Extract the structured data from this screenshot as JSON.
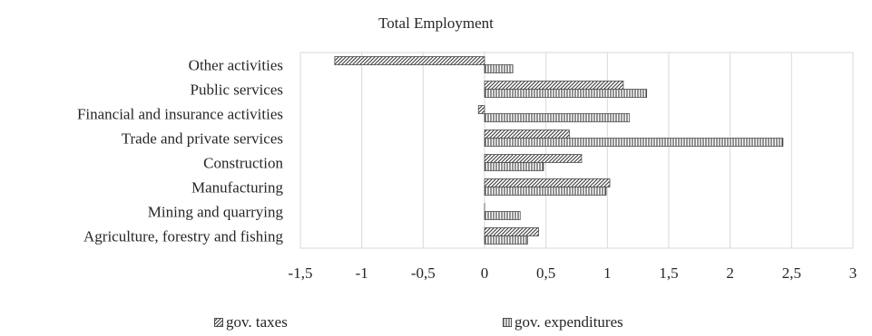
{
  "chart_data": {
    "type": "bar",
    "orientation": "horizontal",
    "title": "Total Employment",
    "categories": [
      "Other activities",
      "Public services",
      "Financial and insurance activities",
      "Trade and private services",
      "Construction",
      "Manufacturing",
      "Mining and quarrying",
      "Agriculture, forestry and fishing"
    ],
    "series": [
      {
        "name": "gov. taxes",
        "values": [
          -1.22,
          1.13,
          -0.05,
          0.69,
          0.79,
          1.02,
          0.0,
          0.44
        ],
        "pattern": "diagonal-hatch"
      },
      {
        "name": "gov. expenditures",
        "values": [
          0.23,
          1.32,
          1.18,
          2.43,
          0.48,
          0.99,
          0.29,
          0.35
        ],
        "pattern": "vertical-hatch"
      }
    ],
    "xlim": [
      -1.5,
      3
    ],
    "xticks": [
      "-1,5",
      "-1",
      "-0,5",
      "0",
      "0,5",
      "1",
      "1,5",
      "2",
      "2,5",
      "3"
    ],
    "xtick_values": [
      -1.5,
      -1,
      -0.5,
      0,
      0.5,
      1,
      1.5,
      2,
      2.5,
      3
    ],
    "grid": true,
    "legend_position": "bottom",
    "colors": {
      "bar_stroke": "#4d4d4d",
      "grid": "#d9d9d9",
      "text": "#262626"
    }
  }
}
